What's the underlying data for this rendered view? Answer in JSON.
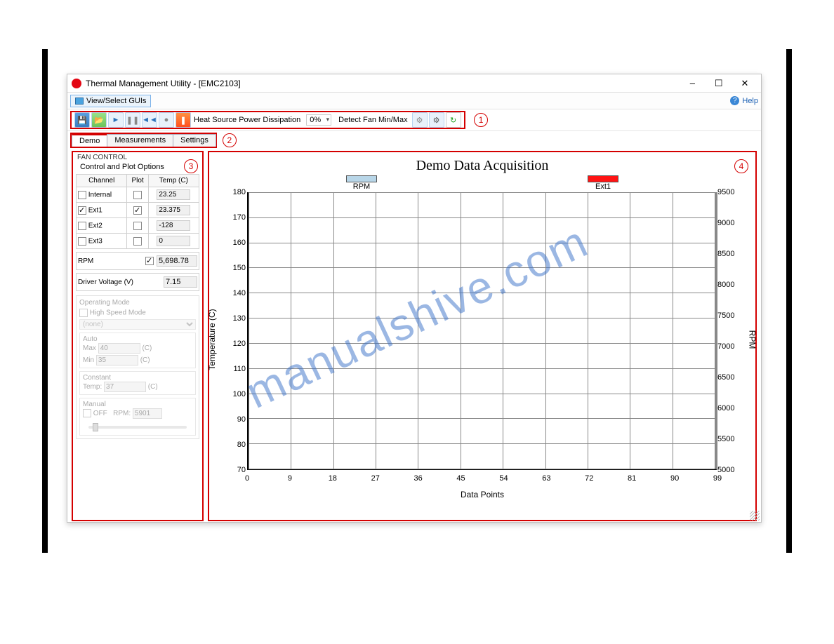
{
  "window": {
    "title": "Thermal Management Utility - [EMC2103]",
    "minimize": "–",
    "maximize": "☐",
    "close": "✕"
  },
  "menubar": {
    "view_select": "View/Select GUIs",
    "help": "Help"
  },
  "toolbar": {
    "heat_label": "Heat Source Power Dissipation",
    "percent": "0%",
    "detect": "Detect Fan Min/Max",
    "callout1": "1"
  },
  "tabs": {
    "demo": "Demo",
    "measurements": "Measurements",
    "settings": "Settings",
    "callout2": "2"
  },
  "fan_control": {
    "title": "FAN CONTROL",
    "subtitle": "Control and Plot Options",
    "callout3": "3",
    "headers": {
      "channel": "Channel",
      "plot": "Plot",
      "temp": "Temp (C)"
    },
    "rows": [
      {
        "channel": "Internal",
        "ch_on": false,
        "plot_on": false,
        "temp": "23.25"
      },
      {
        "channel": "Ext1",
        "ch_on": true,
        "plot_on": true,
        "temp": "23.375"
      },
      {
        "channel": "Ext2",
        "ch_on": false,
        "plot_on": false,
        "temp": "-128"
      },
      {
        "channel": "Ext3",
        "ch_on": false,
        "plot_on": false,
        "temp": "0"
      }
    ],
    "rpm_label": "RPM",
    "rpm_plot": true,
    "rpm_val": "5,698.78",
    "drv_label": "Driver Voltage (V)",
    "drv_val": "7.15",
    "op_mode_title": "Operating Mode",
    "hs_mode": "High Speed Mode",
    "mode_select": "(none)",
    "auto_title": "Auto",
    "auto_max_l": "Max",
    "auto_max": "40",
    "unit_c": "(C)",
    "auto_min_l": "Min",
    "auto_min": "35",
    "const_title": "Constant",
    "const_temp_l": "Temp:",
    "const_temp": "37",
    "manual_title": "Manual",
    "off_label": "OFF",
    "rpm_l": "RPM:",
    "manual_rpm": "5901"
  },
  "chart": {
    "title": "Demo Data Acquisition",
    "callout4": "4",
    "legend_rpm": "RPM",
    "legend_ext1": "Ext1",
    "ylabel": "Temperature (C)",
    "ylabel2": "RPM",
    "xlabel": "Data Points",
    "y_ticks": [
      180,
      170,
      160,
      150,
      140,
      130,
      120,
      110,
      100,
      90,
      80,
      70
    ],
    "y2_ticks": [
      9500,
      9000,
      8500,
      8000,
      7500,
      7000,
      6500,
      6000,
      5500,
      5000
    ],
    "x_ticks": [
      0,
      9,
      18,
      27,
      36,
      45,
      54,
      63,
      72,
      81,
      90,
      99
    ],
    "colors": {
      "rpm_swatch": "#b8d6e8",
      "ext1_swatch": "#ff1414",
      "grid": "#888888",
      "annotation": "#d40000"
    }
  },
  "watermark": "manualshive.com"
}
